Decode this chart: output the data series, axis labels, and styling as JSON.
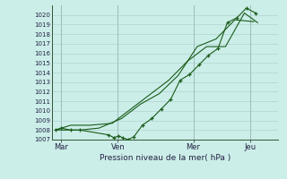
{
  "background_color": "#cceee8",
  "grid_color": "#aacccc",
  "line_color": "#1a5c1a",
  "marker_color": "#1a5c1a",
  "xlabel": "Pression niveau de la mer( hPa )",
  "xtick_labels": [
    "Mar",
    "Ven",
    "Mer",
    "Jeu"
  ],
  "xtick_positions": [
    0.5,
    3.5,
    7.5,
    10.5
  ],
  "xlim": [
    0,
    12
  ],
  "ylim": [
    1007,
    1021
  ],
  "ytick_start": 1007,
  "ytick_end": 1020,
  "series": [
    {
      "x": [
        0.2,
        0.5,
        1.0,
        1.5,
        3.0,
        3.3,
        3.55,
        3.75,
        4.05,
        4.35,
        4.8,
        5.3,
        5.8,
        6.3,
        6.8,
        7.3,
        7.8,
        8.3,
        8.8,
        9.3,
        9.8,
        10.3,
        10.8
      ],
      "y": [
        1008.0,
        1008.2,
        1008.0,
        1008.0,
        1007.5,
        1007.2,
        1007.4,
        1007.2,
        1007.0,
        1007.3,
        1008.5,
        1009.2,
        1010.2,
        1011.2,
        1013.2,
        1013.8,
        1014.8,
        1015.8,
        1016.5,
        1019.2,
        1019.7,
        1020.7,
        1020.2
      ],
      "has_markers": true
    },
    {
      "x": [
        0.2,
        0.7,
        1.5,
        2.5,
        3.7,
        4.7,
        5.7,
        6.7,
        7.7,
        8.7,
        9.7,
        10.7
      ],
      "y": [
        1008.0,
        1008.0,
        1008.0,
        1008.2,
        1009.2,
        1010.7,
        1011.8,
        1013.7,
        1016.7,
        1017.5,
        1019.5,
        1019.3
      ],
      "has_markers": false
    },
    {
      "x": [
        0.2,
        1.0,
        2.0,
        3.2,
        4.2,
        5.2,
        6.2,
        7.2,
        8.2,
        9.2,
        10.2,
        10.9
      ],
      "y": [
        1008.0,
        1008.5,
        1008.5,
        1008.7,
        1010.2,
        1011.7,
        1013.2,
        1015.2,
        1016.7,
        1016.7,
        1020.2,
        1019.2
      ],
      "has_markers": false
    }
  ]
}
